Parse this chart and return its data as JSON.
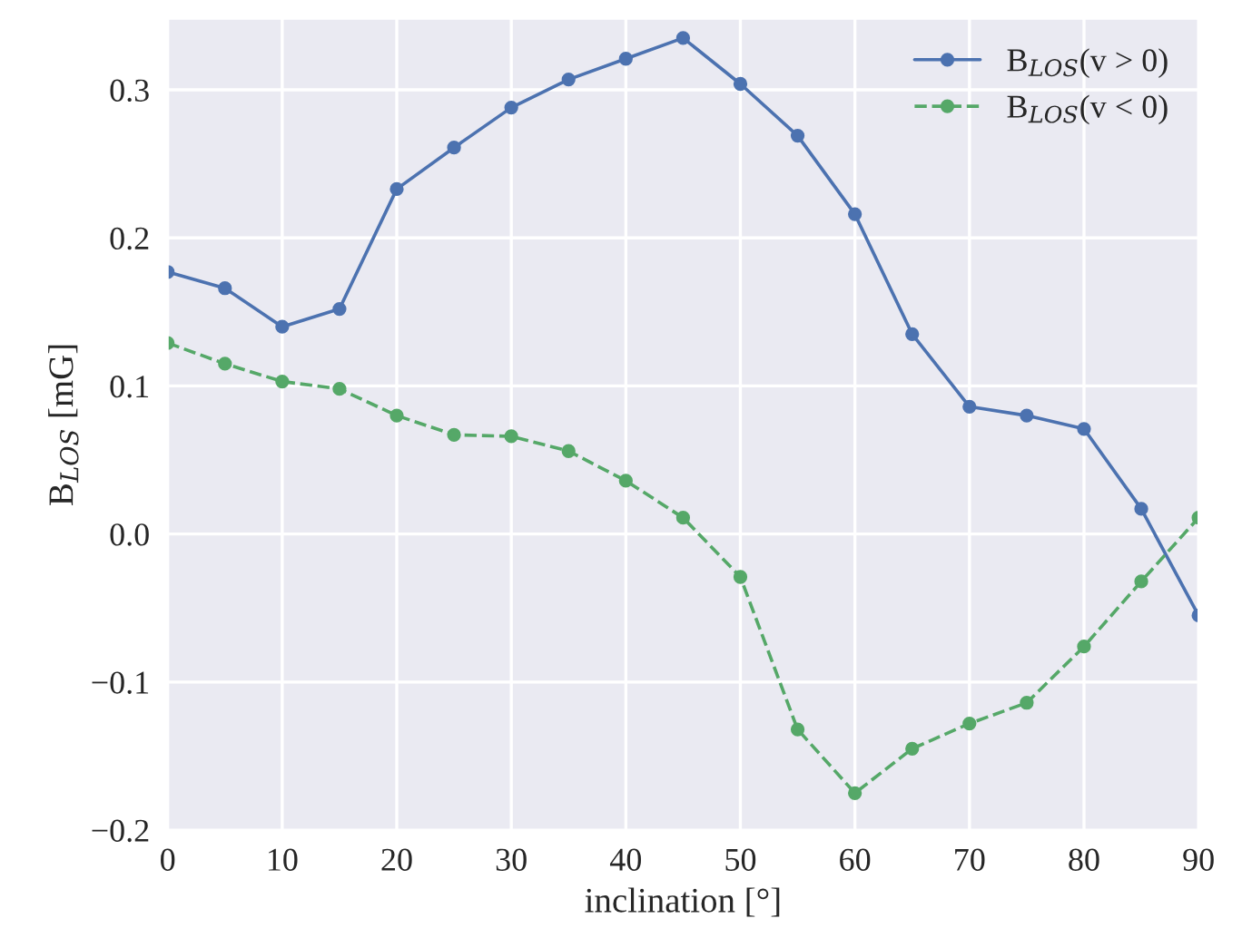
{
  "chart_data": {
    "type": "line",
    "xlabel": "inclination [°]",
    "ylabel": "B$_{LOS}$ [mG]",
    "x": [
      0,
      5,
      10,
      15,
      20,
      25,
      30,
      35,
      40,
      45,
      50,
      55,
      60,
      65,
      70,
      75,
      80,
      85,
      90
    ],
    "series": [
      {
        "name": "B$_{LOS}$(v > 0)",
        "color": "#4c72b0",
        "line_style": "solid",
        "values": [
          0.177,
          0.166,
          0.14,
          0.152,
          0.233,
          0.261,
          0.288,
          0.307,
          0.321,
          0.335,
          0.304,
          0.269,
          0.216,
          0.135,
          0.086,
          0.08,
          0.071,
          0.017,
          -0.055
        ]
      },
      {
        "name": "B$_{LOS}$(v < 0)",
        "color": "#55a868",
        "line_style": "dashed",
        "values": [
          0.129,
          0.115,
          0.103,
          0.098,
          0.08,
          0.067,
          0.066,
          0.056,
          0.036,
          0.011,
          -0.029,
          -0.132,
          -0.175,
          -0.145,
          -0.128,
          -0.114,
          -0.076,
          -0.032,
          0.011
        ]
      }
    ],
    "xlim": [
      0,
      90
    ],
    "ylim": [
      -0.2,
      0.348
    ],
    "xticks": [
      0,
      10,
      20,
      30,
      40,
      50,
      60,
      70,
      80,
      90
    ],
    "yticks": [
      {
        "value": -0.2,
        "label": "−0.2"
      },
      {
        "value": -0.1,
        "label": "−0.1"
      },
      {
        "value": 0.0,
        "label": "0.0"
      },
      {
        "value": 0.1,
        "label": "0.1"
      },
      {
        "value": 0.2,
        "label": "0.2"
      },
      {
        "value": 0.3,
        "label": "0.3"
      }
    ],
    "grid": true,
    "legend": "top right",
    "marker": "circle"
  }
}
